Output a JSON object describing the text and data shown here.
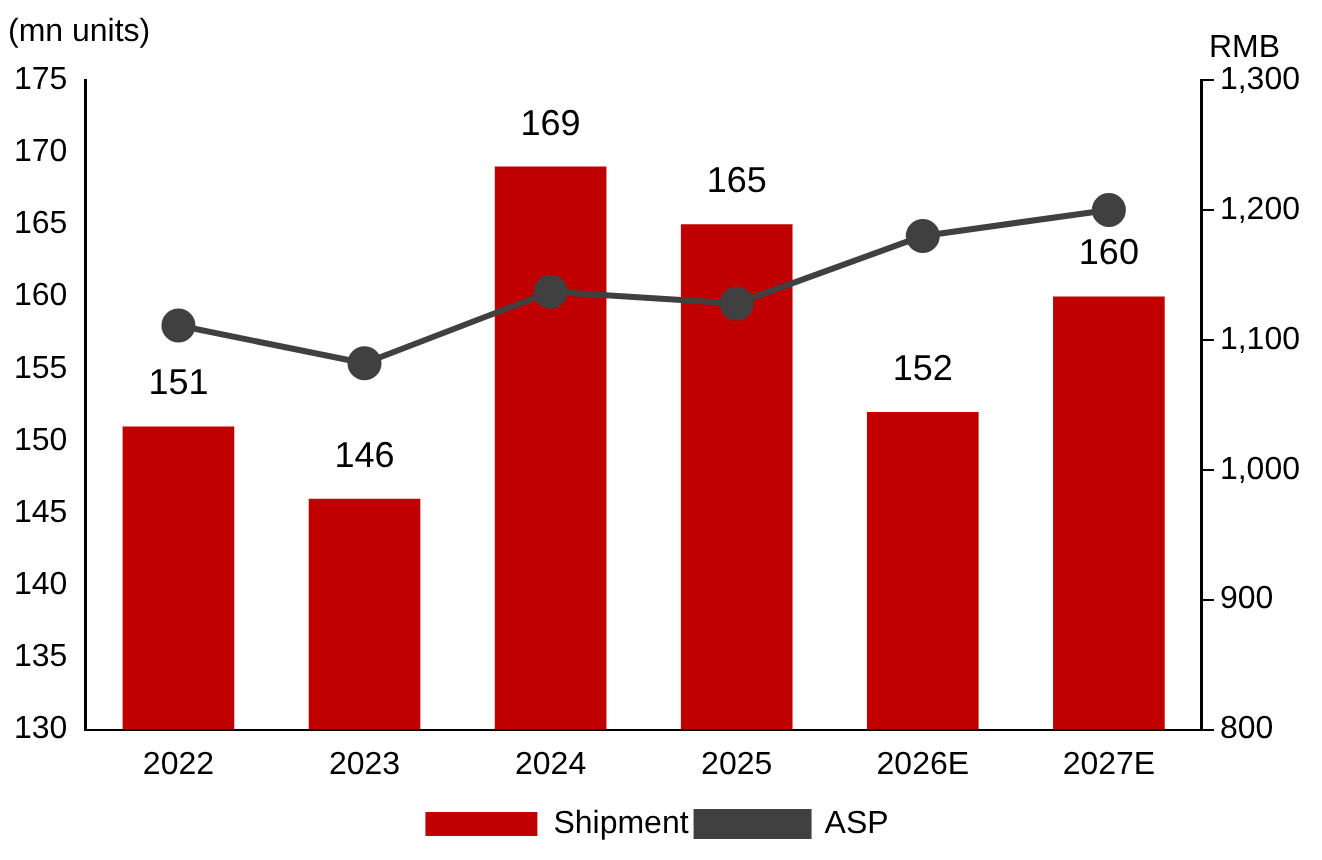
{
  "chart_data": {
    "type": "bar",
    "ylabel": "(mn units)",
    "y2label": "RMB",
    "categories": [
      "2022",
      "2023",
      "2024",
      "2025",
      "2026E",
      "2027E"
    ],
    "series": [
      {
        "name": "Shipment",
        "color": "#c00000",
        "values": [
          151,
          146,
          169,
          165,
          152,
          160
        ],
        "value_labels": [
          "151",
          "146",
          "169",
          "165",
          "152",
          "160"
        ]
      },
      {
        "name": "ASP",
        "type": "line",
        "axis": "y2",
        "color": "#404040",
        "marker": "circle",
        "values": [
          1111,
          1082,
          1137,
          1128,
          1180,
          1200
        ]
      }
    ],
    "ylim": [
      130,
      175
    ],
    "yticks": [
      130,
      135,
      140,
      145,
      150,
      155,
      160,
      165,
      170,
      175
    ],
    "y2lim": [
      800,
      1300
    ],
    "y2ticks": [
      {
        "value": 800,
        "label": "800"
      },
      {
        "value": 900,
        "label": "900"
      },
      {
        "value": 1000,
        "label": "1,000"
      },
      {
        "value": 1100,
        "label": "1,100"
      },
      {
        "value": 1200,
        "label": "1,200"
      },
      {
        "value": 1300,
        "label": "1,300"
      }
    ],
    "grid": false,
    "legend": "bottom"
  }
}
